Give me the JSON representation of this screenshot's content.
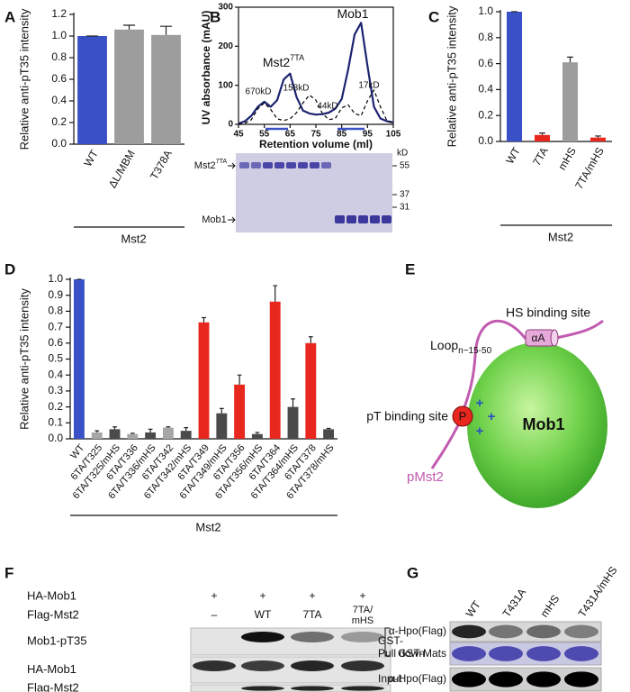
{
  "chart_data": [
    {
      "panel": "A",
      "type": "bar",
      "ylabel": "Relative anti-pT35 intensity",
      "categories": [
        "WT",
        "ΔL/MBM",
        "T378A"
      ],
      "values": [
        1.0,
        1.06,
        1.01
      ],
      "errors": [
        0,
        0.04,
        0.08
      ],
      "colors": [
        "#3a50c6",
        "#9d9d9d",
        "#9d9d9d"
      ],
      "ylim": [
        0,
        1.2
      ],
      "yticks": [
        {
          "value": 0,
          "label": "0.0"
        },
        {
          "value": 0.2,
          "label": "0.2"
        },
        {
          "value": 0.4,
          "label": "0.4"
        },
        {
          "value": 0.6,
          "label": "0.6"
        },
        {
          "value": 0.8,
          "label": "0.8"
        },
        {
          "value": 1,
          "label": "1.0"
        },
        {
          "value": 1.2,
          "label": "1.2"
        }
      ],
      "group_label": "Mst2"
    },
    {
      "panel": "B",
      "type": "line",
      "ylabel": "UV absorbance (mAU)",
      "xlabel": "Retention volume (ml)",
      "x": [
        45,
        47.5,
        50,
        52.5,
        55,
        57.5,
        60,
        62.5,
        65,
        67.5,
        70,
        72.5,
        75,
        77.5,
        80,
        82.5,
        85,
        87.5,
        90,
        92.5,
        95,
        97.5,
        100,
        102.5,
        105
      ],
      "series": [
        {
          "color": "#1c2370",
          "style": "solid",
          "values": [
            2,
            8,
            22,
            45,
            58,
            45,
            62,
            115,
            130,
            70,
            35,
            28,
            25,
            26,
            30,
            40,
            65,
            140,
            230,
            260,
            150,
            45,
            15,
            8,
            5
          ]
        },
        {
          "color": "#000000",
          "style": "dashed",
          "values": [
            0,
            3,
            12,
            40,
            55,
            38,
            14,
            10,
            14,
            30,
            55,
            75,
            62,
            28,
            12,
            15,
            42,
            50,
            28,
            22,
            60,
            88,
            45,
            10,
            2
          ]
        }
      ],
      "xlim": [
        45,
        105
      ],
      "xticks": [
        45,
        55,
        65,
        75,
        85,
        95,
        105
      ],
      "ylim": [
        0,
        300
      ],
      "yticks": [
        0,
        100,
        200,
        300
      ],
      "annotations": [
        "670kD",
        "158kD",
        "44kD",
        "17kD"
      ],
      "peak_labels": [
        {
          "text": "Mst2",
          "sup": "7TA"
        },
        {
          "text": "Mob1"
        }
      ],
      "gel": {
        "labels": [
          {
            "text": "Mst2",
            "sup": "7TA"
          },
          {
            "text": "Mob1"
          }
        ],
        "unit": "kD",
        "markers": [
          55,
          37,
          31
        ]
      }
    },
    {
      "panel": "C",
      "type": "bar",
      "ylabel": "Relative anti-pT35 intensity",
      "categories": [
        "WT",
        "7TA",
        "mHS",
        "7TA/mHS"
      ],
      "values": [
        1.0,
        0.05,
        0.61,
        0.03
      ],
      "errors": [
        0,
        0.015,
        0.04,
        0.012
      ],
      "colors": [
        "#3a50c6",
        "#e8271f",
        "#9d9d9d",
        "#e8271f"
      ],
      "ylim": [
        0,
        1
      ],
      "yticks": [
        {
          "value": 0,
          "label": "0.0"
        },
        {
          "value": 0.2,
          "label": "0.2"
        },
        {
          "value": 0.4,
          "label": "0.4"
        },
        {
          "value": 0.6,
          "label": "0.6"
        },
        {
          "value": 0.8,
          "label": "0.8"
        },
        {
          "value": 1,
          "label": "1.0"
        }
      ],
      "group_label": "Mst2"
    },
    {
      "panel": "D",
      "type": "bar",
      "ylabel": "Relative anti-pT35 intensity",
      "categories": [
        "WT",
        "6TA/T325",
        "6TA/T325/mHS",
        "6TA/T336",
        "6TA/T336/mHS",
        "6TA/T342",
        "6TA/T342/mHS",
        "6TA/T349",
        "6TA/T349/mHS",
        "6TA/T356",
        "6TA/T356/mHS",
        "6TA/T364",
        "6TA/T364/mHS",
        "6TA/T378",
        "6TA/T378/mHS"
      ],
      "values": [
        1.0,
        0.04,
        0.06,
        0.03,
        0.04,
        0.07,
        0.05,
        0.73,
        0.16,
        0.34,
        0.03,
        0.86,
        0.2,
        0.6,
        0.06
      ],
      "errors": [
        0,
        0.01,
        0.015,
        0.005,
        0.02,
        0.005,
        0.02,
        0.03,
        0.03,
        0.06,
        0.01,
        0.1,
        0.05,
        0.04,
        0.005
      ],
      "colors": [
        "#3a50c6",
        "#a6a6a6",
        "#4a4a4a",
        "#a6a6a6",
        "#4a4a4a",
        "#a6a6a6",
        "#4a4a4a",
        "#e8271f",
        "#4a4a4a",
        "#e8271f",
        "#4a4a4a",
        "#e8271f",
        "#4a4a4a",
        "#e8271f",
        "#4a4a4a"
      ],
      "ylim": [
        0,
        1
      ],
      "yticks": [
        {
          "value": 0,
          "label": "0.0"
        },
        {
          "value": 0.1,
          "label": "0.1"
        },
        {
          "value": 0.2,
          "label": "0.2"
        },
        {
          "value": 0.3,
          "label": "0.3"
        },
        {
          "value": 0.4,
          "label": "0.4"
        },
        {
          "value": 0.5,
          "label": "0.5"
        },
        {
          "value": 0.6,
          "label": "0.6"
        },
        {
          "value": 0.7,
          "label": "0.7"
        },
        {
          "value": 0.8,
          "label": "0.8"
        },
        {
          "value": 0.9,
          "label": "0.9"
        },
        {
          "value": 1,
          "label": "1.0"
        }
      ],
      "group_label": "Mst2"
    }
  ],
  "diagram": {
    "panel": "E",
    "hs_site": "HS binding site",
    "helix": "αA",
    "loop": {
      "text": "Loop",
      "sub": "n~15-50"
    },
    "mob1": "Mob1",
    "pt_site": "pT binding site",
    "phospho": "P",
    "plus": "+",
    "pmst2": "pMst2"
  },
  "blot_f": {
    "panel": "F",
    "conditions": [
      {
        "name": "HA-Mob1",
        "lanes": [
          "+",
          "+",
          "+",
          "+"
        ]
      },
      {
        "name": "Flag-Mst2",
        "lanes": [
          "–",
          "WT",
          "7TA",
          [
            "7TA/",
            "mHS"
          ]
        ]
      }
    ],
    "rows": [
      "Mob1-pT35",
      "HA-Mob1",
      "Flag-Mst2"
    ]
  },
  "blot_g": {
    "panel": "G",
    "lanes": [
      "WT",
      "T431A",
      "mHS",
      "T431A/mHS"
    ],
    "group": [
      "GST-",
      "Pull down"
    ],
    "rows": [
      "α-Hpo(Flag)",
      "GST-Mats"
    ],
    "input": "Input",
    "input_row": "α-Hpo(Flag)"
  }
}
